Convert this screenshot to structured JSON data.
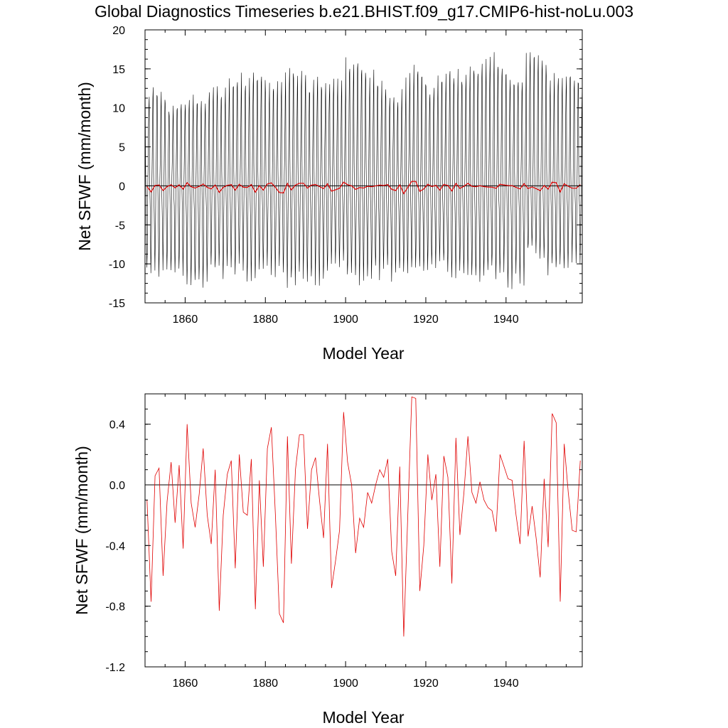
{
  "title": "Global Diagnostics Timeseries b.e21.BHIST.f09_g17.CMIP6-hist-noLu.003",
  "colors": {
    "monthly": "#000000",
    "annual": "#e00000",
    "zero_line": "#000000",
    "frame": "#000000"
  },
  "chart_data": [
    {
      "type": "line",
      "xlabel": "Model Year",
      "ylabel": "Net SFWF (mm/month)",
      "xlim": [
        1850,
        1959
      ],
      "ylim": [
        -15,
        20
      ],
      "xticks": [
        "1860",
        "1880",
        "1900",
        "1920",
        "1940"
      ],
      "yticks": [
        "20",
        "15",
        "10",
        "5",
        "0",
        "-5",
        "-10",
        "-15"
      ],
      "zero_line": true,
      "monthly_seasonal_cycle": [
        11.0,
        2.0,
        -1.0,
        -3.0,
        -6.5,
        -10.0,
        -8.0,
        -4.0,
        0.5,
        3.5,
        7.0,
        10.0
      ],
      "monthly_max_approx": [
        13.0,
        11.5,
        11.5,
        13.0,
        14.0,
        15.0,
        13.5,
        15.5,
        14.0,
        15.0,
        16.5,
        14.5,
        12.5,
        15.0,
        14.0,
        15.0,
        16.0,
        17.5,
        14.0,
        18.0,
        15.0,
        14.5
      ],
      "monthly_min_approx": [
        -9.5,
        -11.5,
        -10.0,
        -11.5,
        -12.0,
        -13.5,
        -12.0,
        -11.0,
        -12.0,
        -11.5,
        -12.5,
        -13.0,
        -11.0,
        -12.5,
        -12.0,
        -12.0,
        -11.5,
        -11.0,
        -12.5,
        -12.0,
        -11.5,
        -13.0
      ],
      "series": [
        {
          "key": "annual",
          "x_start": 1850.5,
          "x_step": 1,
          "values": [
            -0.1,
            -0.77,
            0.06,
            0.11,
            -0.6,
            -0.11,
            0.15,
            -0.25,
            0.13,
            -0.42,
            0.4,
            -0.12,
            -0.28,
            -0.06,
            0.24,
            -0.2,
            -0.39,
            0.1,
            -0.83,
            -0.2,
            0.07,
            0.16,
            -0.55,
            0.2,
            -0.18,
            -0.2,
            0.17,
            -0.82,
            0.03,
            -0.54,
            0.24,
            0.38,
            -0.2,
            -0.85,
            -0.91,
            0.32,
            -0.52,
            0.1,
            0.33,
            0.33,
            -0.29,
            0.1,
            0.18,
            -0.1,
            -0.35,
            0.27,
            -0.68,
            -0.5,
            -0.3,
            0.48,
            0.15,
            0.0,
            -0.45,
            -0.22,
            -0.28,
            -0.05,
            -0.12,
            0.0,
            0.1,
            0.05,
            0.17,
            -0.44,
            -0.6,
            0.12,
            -1.0,
            -0.2,
            0.58,
            0.57,
            -0.7,
            -0.4,
            0.2,
            -0.1,
            0.07,
            -0.54,
            0.19,
            0.05,
            -0.65,
            0.31,
            -0.33,
            -0.05,
            0.32,
            -0.05,
            -0.12,
            0.02,
            -0.1,
            -0.15,
            -0.17,
            -0.31,
            0.2,
            0.12,
            0.04,
            0.03,
            -0.2,
            -0.39,
            0.29,
            -0.34,
            -0.14,
            -0.35,
            -0.61,
            0.04,
            -0.41,
            0.47,
            0.41,
            -0.77,
            0.27,
            -0.05,
            -0.3,
            -0.31,
            0.16
          ]
        }
      ]
    },
    {
      "type": "line",
      "xlabel": "Model Year",
      "ylabel": "Net SFWF (mm/month)",
      "xlim": [
        1850,
        1959
      ],
      "ylim": [
        -1.2,
        0.6
      ],
      "xticks": [
        "1860",
        "1880",
        "1900",
        "1920",
        "1940"
      ],
      "yticks": [
        "0.4",
        "0.0",
        "-0.4",
        "-0.8",
        "-1.2"
      ],
      "zero_line": true,
      "series": [
        {
          "key": "annual",
          "x_start": 1850.5,
          "x_step": 1,
          "values": [
            -0.1,
            -0.77,
            0.06,
            0.11,
            -0.6,
            -0.11,
            0.15,
            -0.25,
            0.13,
            -0.42,
            0.4,
            -0.12,
            -0.28,
            -0.06,
            0.24,
            -0.2,
            -0.39,
            0.1,
            -0.83,
            -0.2,
            0.07,
            0.16,
            -0.55,
            0.2,
            -0.18,
            -0.2,
            0.17,
            -0.82,
            0.03,
            -0.54,
            0.24,
            0.38,
            -0.2,
            -0.85,
            -0.91,
            0.32,
            -0.52,
            0.1,
            0.33,
            0.33,
            -0.29,
            0.1,
            0.18,
            -0.1,
            -0.35,
            0.27,
            -0.68,
            -0.5,
            -0.3,
            0.48,
            0.15,
            0.0,
            -0.45,
            -0.22,
            -0.28,
            -0.05,
            -0.12,
            0.0,
            0.1,
            0.05,
            0.17,
            -0.44,
            -0.6,
            0.12,
            -1.0,
            -0.2,
            0.58,
            0.57,
            -0.7,
            -0.4,
            0.2,
            -0.1,
            0.07,
            -0.54,
            0.19,
            0.05,
            -0.65,
            0.31,
            -0.33,
            -0.05,
            0.32,
            -0.05,
            -0.12,
            0.02,
            -0.1,
            -0.15,
            -0.17,
            -0.31,
            0.2,
            0.12,
            0.04,
            0.03,
            -0.2,
            -0.39,
            0.29,
            -0.34,
            -0.14,
            -0.35,
            -0.61,
            0.04,
            -0.41,
            0.47,
            0.41,
            -0.77,
            0.27,
            -0.05,
            -0.3,
            -0.31,
            0.16
          ]
        }
      ]
    }
  ]
}
